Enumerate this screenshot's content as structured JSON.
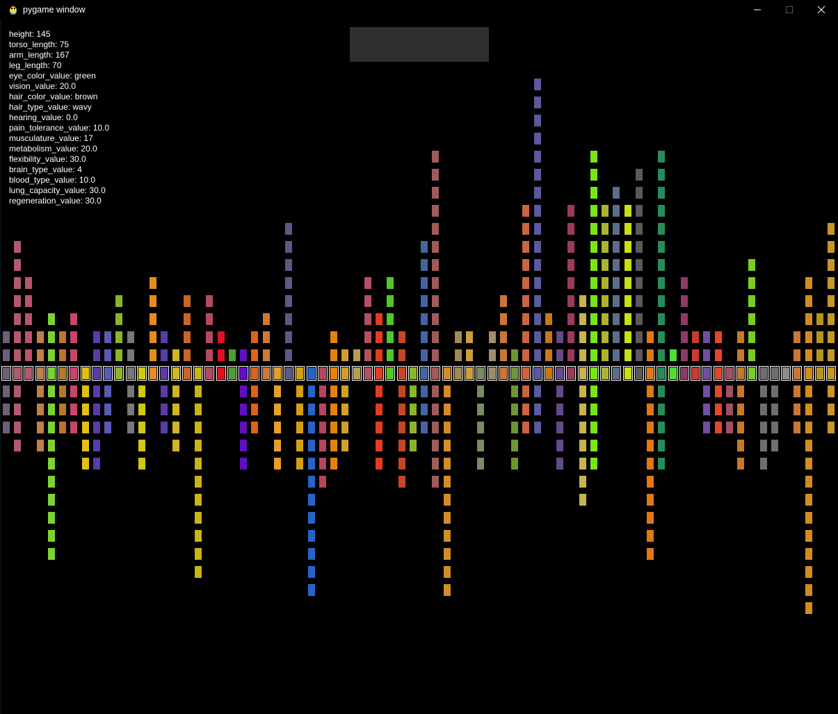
{
  "window": {
    "title": "pygame window",
    "icon": "pygame-snake-icon",
    "controls": [
      "minimize-icon",
      "maximize-icon",
      "close-icon"
    ]
  },
  "stats": [
    "height: 145",
    "torso_length: 75",
    "arm_length: 167",
    "leg_length: 70",
    "eye_color_value: green",
    "vision_value: 20.0",
    "hair_color_value: brown",
    "hair_type_value: wavy",
    "hearing_value: 0.0",
    "pain_tolerance_value: 10.0",
    "musculature_value: 17",
    "metabolism_value: 20.0",
    "flexibility_value: 30.0",
    "brain_type_value: 4",
    "blood_type_value: 10.0",
    "lung_capacity_value: 30.0",
    "regeneration_value: 30.0"
  ],
  "colors": {
    "background": "#000000",
    "panel": "#2f2f2f",
    "text": "#ffffff"
  },
  "columns": [
    {
      "color": "#6e6078",
      "up": 2,
      "down": 3
    },
    {
      "color": "#b05a70",
      "up": 7,
      "down": 4
    },
    {
      "color": "#b8556a",
      "up": 5,
      "down": 0
    },
    {
      "color": "#c08048",
      "up": 2,
      "down": 4
    },
    {
      "color": "#7cd232",
      "up": 3,
      "down": 10
    },
    {
      "color": "#b97825",
      "up": 2,
      "down": 3
    },
    {
      "color": "#c8466a",
      "up": 3,
      "down": 3
    },
    {
      "color": "#e0c010",
      "up": 0,
      "down": 5
    },
    {
      "color": "#5a3ca8",
      "up": 2,
      "down": 5
    },
    {
      "color": "#5a5ab4",
      "up": 2,
      "down": 3
    },
    {
      "color": "#8cb428",
      "up": 4,
      "down": 0
    },
    {
      "color": "#787878",
      "up": 2,
      "down": 3
    },
    {
      "color": "#d2c814",
      "up": 0,
      "down": 5
    },
    {
      "color": "#e68c1e",
      "up": 5,
      "down": 0
    },
    {
      "color": "#5a3ca8",
      "up": 2,
      "down": 3
    },
    {
      "color": "#d2b428",
      "up": 1,
      "down": 4
    },
    {
      "color": "#c86428",
      "up": 4,
      "down": 0
    },
    {
      "color": "#c8b414",
      "up": 0,
      "down": 11
    },
    {
      "color": "#b44a60",
      "up": 4,
      "down": 0
    },
    {
      "color": "#e01020",
      "up": 2,
      "down": 0
    },
    {
      "color": "#50a030",
      "up": 1,
      "down": 0
    },
    {
      "color": "#6010c0",
      "up": 1,
      "down": 5
    },
    {
      "color": "#e06414",
      "up": 2,
      "down": 3
    },
    {
      "color": "#d07838",
      "up": 3,
      "down": 0
    },
    {
      "color": "#e6a028",
      "up": 0,
      "down": 5
    },
    {
      "color": "#5a5a84",
      "up": 8,
      "down": 0
    },
    {
      "color": "#d2a014",
      "up": 0,
      "down": 5
    },
    {
      "color": "#2864c8",
      "up": 0,
      "down": 12
    },
    {
      "color": "#b4465a",
      "up": 0,
      "down": 6
    },
    {
      "color": "#e6820a",
      "up": 2,
      "down": 5
    },
    {
      "color": "#d2a028",
      "up": 1,
      "down": 4
    },
    {
      "color": "#b4a050",
      "up": 1,
      "down": 0
    },
    {
      "color": "#b45064",
      "up": 5,
      "down": 0
    },
    {
      "color": "#e63c1e",
      "up": 3,
      "down": 5
    },
    {
      "color": "#50c828",
      "up": 5,
      "down": 0
    },
    {
      "color": "#c84628",
      "up": 2,
      "down": 6
    },
    {
      "color": "#8cb42d",
      "up": 0,
      "down": 4
    },
    {
      "color": "#4664a0",
      "up": 7,
      "down": 3
    },
    {
      "color": "#a05a5a",
      "up": 12,
      "down": 6
    },
    {
      "color": "#d28c28",
      "up": 0,
      "down": 12
    },
    {
      "color": "#a08c50",
      "up": 2,
      "down": 0
    },
    {
      "color": "#c8a03c",
      "up": 2,
      "down": 0
    },
    {
      "color": "#788c64",
      "up": 0,
      "down": 5
    },
    {
      "color": "#a08c6e",
      "up": 2,
      "down": 0
    },
    {
      "color": "#c8783c",
      "up": 4,
      "down": 0
    },
    {
      "color": "#6e9632",
      "up": 1,
      "down": 5
    },
    {
      "color": "#cc6440",
      "up": 9,
      "down": 3
    },
    {
      "color": "#5a5aa0",
      "up": 16,
      "down": 3
    },
    {
      "color": "#c87814",
      "up": 3,
      "down": 0
    },
    {
      "color": "#644a8c",
      "up": 2,
      "down": 5
    },
    {
      "color": "#9c3a5c",
      "up": 9,
      "down": 0
    },
    {
      "color": "#c8b450",
      "up": 4,
      "down": 7
    },
    {
      "color": "#78e614",
      "up": 12,
      "down": 5
    },
    {
      "color": "#aab432",
      "up": 9,
      "down": 0
    },
    {
      "color": "#5a6e8c",
      "up": 10,
      "down": 0
    },
    {
      "color": "#c8e014",
      "up": 9,
      "down": 0
    },
    {
      "color": "#5a5a5a",
      "up": 11,
      "down": 0
    },
    {
      "color": "#e07814",
      "up": 2,
      "down": 10
    },
    {
      "color": "#288c5a",
      "up": 12,
      "down": 5
    },
    {
      "color": "#50dc32",
      "up": 1,
      "down": 0
    },
    {
      "color": "#8c3c64",
      "up": 5,
      "down": 0
    },
    {
      "color": "#c83c32",
      "up": 2,
      "down": 0
    },
    {
      "color": "#6e50a0",
      "up": 2,
      "down": 3
    },
    {
      "color": "#e64628",
      "up": 2,
      "down": 3
    },
    {
      "color": "#a05064",
      "up": 0,
      "down": 3
    },
    {
      "color": "#c87828",
      "up": 2,
      "down": 5
    },
    {
      "color": "#78cd28",
      "up": 6,
      "down": 0
    },
    {
      "color": "#6e6e6e",
      "up": 0,
      "down": 5
    },
    {
      "color": "#6e6e6e",
      "up": 0,
      "down": 4
    },
    {
      "color": "#8c8c8c",
      "up": 0,
      "down": 0
    },
    {
      "color": "#c87832",
      "up": 2,
      "down": 3
    },
    {
      "color": "#d28c1e",
      "up": 5,
      "down": 13
    },
    {
      "color": "#b4961e",
      "up": 3,
      "down": 0
    },
    {
      "color": "#c89628",
      "up": 8,
      "down": 3
    }
  ]
}
